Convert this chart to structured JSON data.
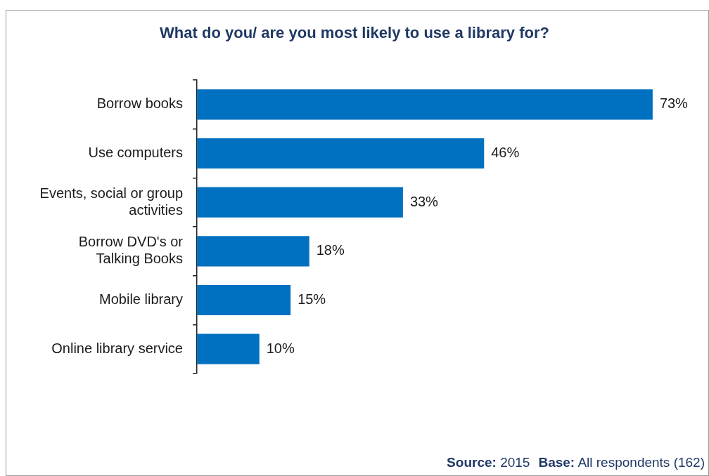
{
  "chart_data": {
    "type": "bar",
    "orientation": "horizontal",
    "title": "What do you/ are you most likely to use a library for?",
    "categories": [
      "Borrow books",
      "Use computers",
      "Events, social or group activities",
      "Borrow DVD's or Talking Books",
      "Mobile library",
      "Online library service"
    ],
    "values": [
      73,
      46,
      33,
      18,
      15,
      10
    ],
    "value_labels": [
      "73%",
      "46%",
      "33%",
      "18%",
      "15%",
      "10%"
    ],
    "color": "#0070c0",
    "legend": false,
    "annotations": [
      "Source: 2015",
      "Base: All respondents (162)"
    ]
  }
}
